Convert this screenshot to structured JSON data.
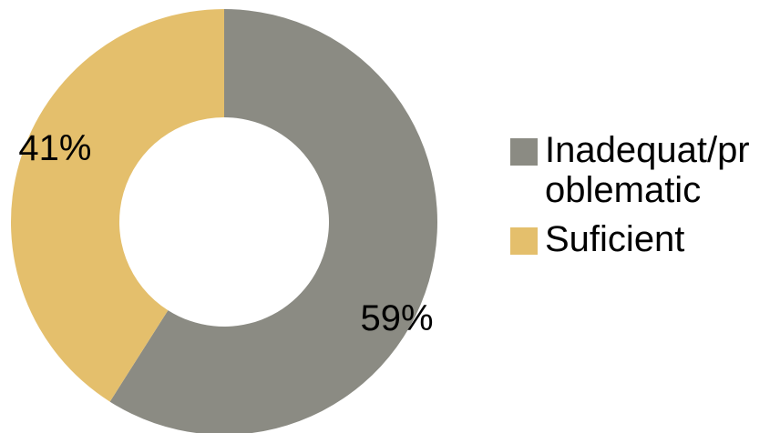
{
  "chart_data": {
    "type": "pie",
    "variant": "donut",
    "categories": [
      "Inadequat/problematic",
      "Suficient"
    ],
    "values": [
      59,
      41
    ],
    "unit": "%",
    "data_labels": [
      "59%",
      "41%"
    ],
    "colors": [
      "#8b8b83",
      "#e4bf6c"
    ],
    "title": "",
    "legend_position": "right",
    "legend": [
      {
        "label": "Inadequat/problematic",
        "color": "#8b8b83"
      },
      {
        "label": "Suficient",
        "color": "#e4bf6c"
      }
    ]
  }
}
